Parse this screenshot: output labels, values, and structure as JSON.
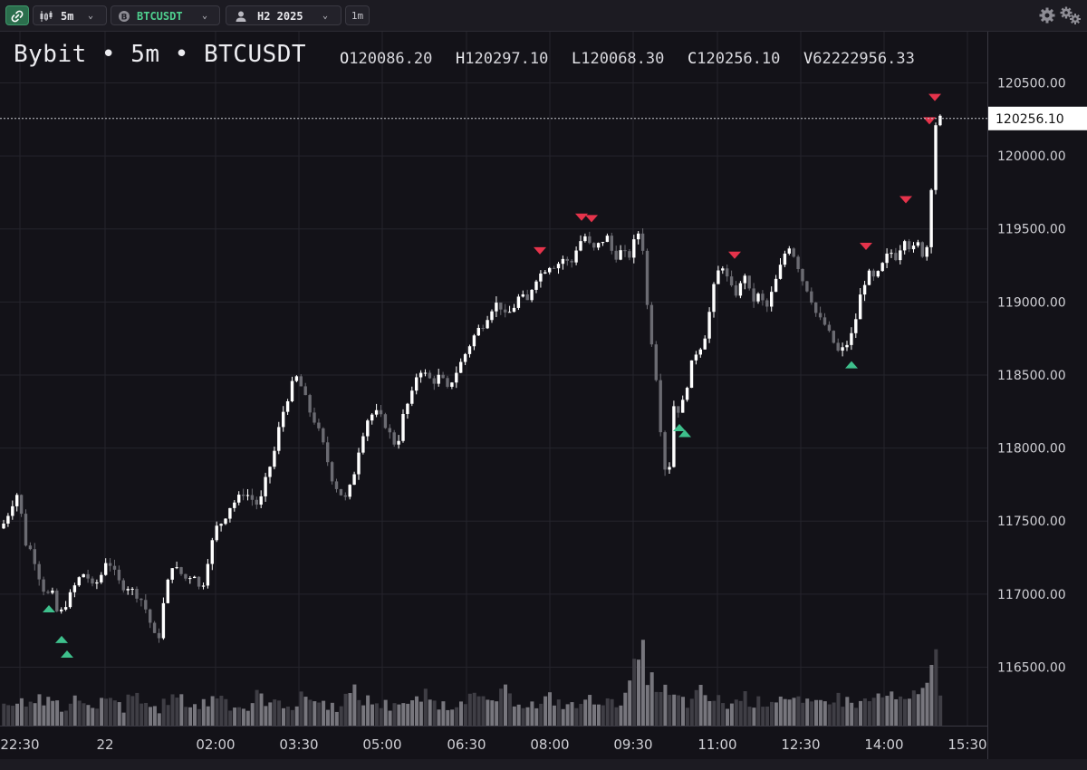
{
  "toolbar": {
    "timeframe_label": "5m",
    "symbol_label": "BTCUSDT",
    "user_label": "H2 2025",
    "sub_timeframe_label": "1m",
    "icons": [
      "link-icon",
      "candles-icon",
      "chevron-down-icon",
      "bitcoin-icon",
      "user-icon",
      "gear-icon",
      "multi-gear-icon"
    ]
  },
  "header": {
    "title": "Bybit • 5m • BTCUSDT",
    "ohlcv": [
      {
        "key": "O",
        "value": "120086.20"
      },
      {
        "key": "H",
        "value": "120297.10"
      },
      {
        "key": "L",
        "value": "120068.30"
      },
      {
        "key": "C",
        "value": "120256.10"
      },
      {
        "key": "V",
        "value": "62222956.33"
      }
    ]
  },
  "chart_data": {
    "type": "candlestick",
    "y_ticks": [
      120500,
      120000,
      119500,
      119000,
      118500,
      118000,
      117500,
      117000,
      116500
    ],
    "y_tick_labels": [
      "120500.00",
      "120000.00",
      "119500.00",
      "119000.00",
      "118500.00",
      "118000.00",
      "117500.00",
      "117000.00",
      "116500.00"
    ],
    "ylim": [
      116100,
      120850
    ],
    "x_tick_labels": [
      "22:30",
      "22",
      "02:00",
      "03:30",
      "05:00",
      "06:30",
      "08:00",
      "09:30",
      "11:00",
      "12:30",
      "14:00",
      "15:30"
    ],
    "grid": true,
    "last_price": 120256.1,
    "last_price_label": "120256.10",
    "colors": {
      "up": "#ffffff",
      "down": "#6b6b72",
      "volume_up": "#77767d",
      "volume_down": "#3f3e45",
      "buy_marker": "#3ec08c",
      "sell_marker": "#e5334b",
      "grid": "#25242c"
    },
    "price_path": [
      [
        0,
        117450
      ],
      [
        6,
        117500
      ],
      [
        12,
        117600
      ],
      [
        20,
        117700
      ],
      [
        28,
        117350
      ],
      [
        34,
        117300
      ],
      [
        40,
        117200
      ],
      [
        46,
        117050
      ],
      [
        52,
        117000
      ],
      [
        58,
        117000
      ],
      [
        64,
        116850
      ],
      [
        70,
        116900
      ],
      [
        78,
        117000
      ],
      [
        86,
        117100
      ],
      [
        94,
        117150
      ],
      [
        102,
        117050
      ],
      [
        110,
        117100
      ],
      [
        118,
        117250
      ],
      [
        126,
        117150
      ],
      [
        134,
        117050
      ],
      [
        142,
        117050
      ],
      [
        150,
        117000
      ],
      [
        158,
        116950
      ],
      [
        166,
        116800
      ],
      [
        174,
        116650
      ],
      [
        182,
        117000
      ],
      [
        190,
        117200
      ],
      [
        198,
        117150
      ],
      [
        206,
        117100
      ],
      [
        214,
        117150
      ],
      [
        222,
        117000
      ],
      [
        230,
        117250
      ],
      [
        238,
        117450
      ],
      [
        246,
        117500
      ],
      [
        254,
        117600
      ],
      [
        262,
        117650
      ],
      [
        270,
        117700
      ],
      [
        278,
        117650
      ],
      [
        286,
        117600
      ],
      [
        294,
        117800
      ],
      [
        302,
        117950
      ],
      [
        310,
        118200
      ],
      [
        318,
        118350
      ],
      [
        326,
        118500
      ],
      [
        334,
        118400
      ],
      [
        342,
        118250
      ],
      [
        350,
        118150
      ],
      [
        358,
        118000
      ],
      [
        366,
        117800
      ],
      [
        374,
        117700
      ],
      [
        382,
        117650
      ],
      [
        390,
        117800
      ],
      [
        398,
        118050
      ],
      [
        406,
        118200
      ],
      [
        414,
        118250
      ],
      [
        422,
        118200
      ],
      [
        430,
        118100
      ],
      [
        438,
        118000
      ],
      [
        446,
        118250
      ],
      [
        454,
        118350
      ],
      [
        462,
        118550
      ],
      [
        470,
        118500
      ],
      [
        478,
        118450
      ],
      [
        486,
        118500
      ],
      [
        494,
        118400
      ],
      [
        502,
        118500
      ],
      [
        510,
        118600
      ],
      [
        518,
        118700
      ],
      [
        526,
        118800
      ],
      [
        534,
        118850
      ],
      [
        542,
        118950
      ],
      [
        550,
        119000
      ],
      [
        558,
        118900
      ],
      [
        566,
        118950
      ],
      [
        574,
        119050
      ],
      [
        582,
        119000
      ],
      [
        590,
        119150
      ],
      [
        598,
        119200
      ],
      [
        606,
        119250
      ],
      [
        614,
        119250
      ],
      [
        622,
        119300
      ],
      [
        630,
        119250
      ],
      [
        638,
        119400
      ],
      [
        646,
        119450
      ],
      [
        654,
        119350
      ],
      [
        662,
        119400
      ],
      [
        670,
        119450
      ],
      [
        678,
        119300
      ],
      [
        686,
        119350
      ],
      [
        694,
        119300
      ],
      [
        702,
        119450
      ],
      [
        708,
        119500
      ],
      [
        714,
        119000
      ],
      [
        720,
        118700
      ],
      [
        726,
        118400
      ],
      [
        732,
        117900
      ],
      [
        738,
        117800
      ],
      [
        744,
        118300
      ],
      [
        750,
        118250
      ],
      [
        756,
        118350
      ],
      [
        762,
        118550
      ],
      [
        768,
        118650
      ],
      [
        774,
        118700
      ],
      [
        780,
        118800
      ],
      [
        786,
        119050
      ],
      [
        792,
        119200
      ],
      [
        798,
        119250
      ],
      [
        806,
        119100
      ],
      [
        814,
        119050
      ],
      [
        822,
        119200
      ],
      [
        830,
        119000
      ],
      [
        838,
        119050
      ],
      [
        846,
        118950
      ],
      [
        854,
        119100
      ],
      [
        862,
        119250
      ],
      [
        870,
        119400
      ],
      [
        878,
        119300
      ],
      [
        886,
        119150
      ],
      [
        894,
        119050
      ],
      [
        902,
        118900
      ],
      [
        910,
        118850
      ],
      [
        918,
        118750
      ],
      [
        926,
        118650
      ],
      [
        934,
        118700
      ],
      [
        942,
        118800
      ],
      [
        950,
        119050
      ],
      [
        958,
        119200
      ],
      [
        966,
        119150
      ],
      [
        974,
        119250
      ],
      [
        982,
        119350
      ],
      [
        990,
        119300
      ],
      [
        998,
        119450
      ],
      [
        1006,
        119350
      ],
      [
        1014,
        119400
      ],
      [
        1020,
        119300
      ],
      [
        1026,
        119450
      ],
      [
        1030,
        120100
      ],
      [
        1034,
        120256
      ]
    ],
    "volume": [
      18,
      22,
      30,
      25,
      20,
      28,
      35,
      24,
      18,
      22,
      26,
      30,
      20,
      16,
      24,
      28,
      22,
      18,
      26,
      32,
      24,
      20,
      18,
      22,
      28,
      30,
      26,
      22,
      20,
      24,
      28,
      34,
      26,
      22,
      20,
      18,
      24,
      30,
      28,
      22,
      26,
      24,
      20,
      28,
      32,
      26,
      24,
      22,
      20,
      26,
      30,
      34,
      28,
      26,
      24,
      22,
      20,
      26,
      24,
      22,
      26,
      30,
      28,
      24,
      22,
      20,
      26,
      32,
      30,
      28,
      24,
      26,
      30,
      34,
      28,
      26,
      24,
      22,
      20,
      26,
      28,
      24,
      22,
      20,
      24,
      26,
      30,
      28,
      24,
      22,
      30,
      40,
      55,
      70,
      60,
      45,
      35,
      30,
      28,
      26,
      24,
      30,
      34,
      28,
      26,
      24,
      22,
      26,
      30,
      28,
      24,
      26,
      28,
      30,
      34,
      26,
      24,
      22,
      20,
      24,
      26,
      30,
      28,
      26,
      24,
      22,
      26,
      28,
      30,
      32,
      28,
      26,
      24,
      30,
      34,
      60,
      70,
      28
    ],
    "markers": [
      {
        "type": "buy",
        "t": 54,
        "price": 116900
      },
      {
        "type": "buy",
        "t": 68,
        "price": 116690
      },
      {
        "type": "buy",
        "t": 74,
        "price": 116590
      },
      {
        "type": "sell",
        "t": 596,
        "price": 119350
      },
      {
        "type": "sell",
        "t": 642,
        "price": 119580
      },
      {
        "type": "sell",
        "t": 653,
        "price": 119570
      },
      {
        "type": "buy",
        "t": 750,
        "price": 118140
      },
      {
        "type": "buy",
        "t": 756,
        "price": 118100
      },
      {
        "type": "sell",
        "t": 811,
        "price": 119320
      },
      {
        "type": "buy",
        "t": 940,
        "price": 118570
      },
      {
        "type": "sell",
        "t": 956,
        "price": 119380
      },
      {
        "type": "sell",
        "t": 1000,
        "price": 119700
      },
      {
        "type": "sell",
        "t": 1026,
        "price": 120240
      },
      {
        "type": "sell",
        "t": 1032,
        "price": 120400
      }
    ]
  }
}
